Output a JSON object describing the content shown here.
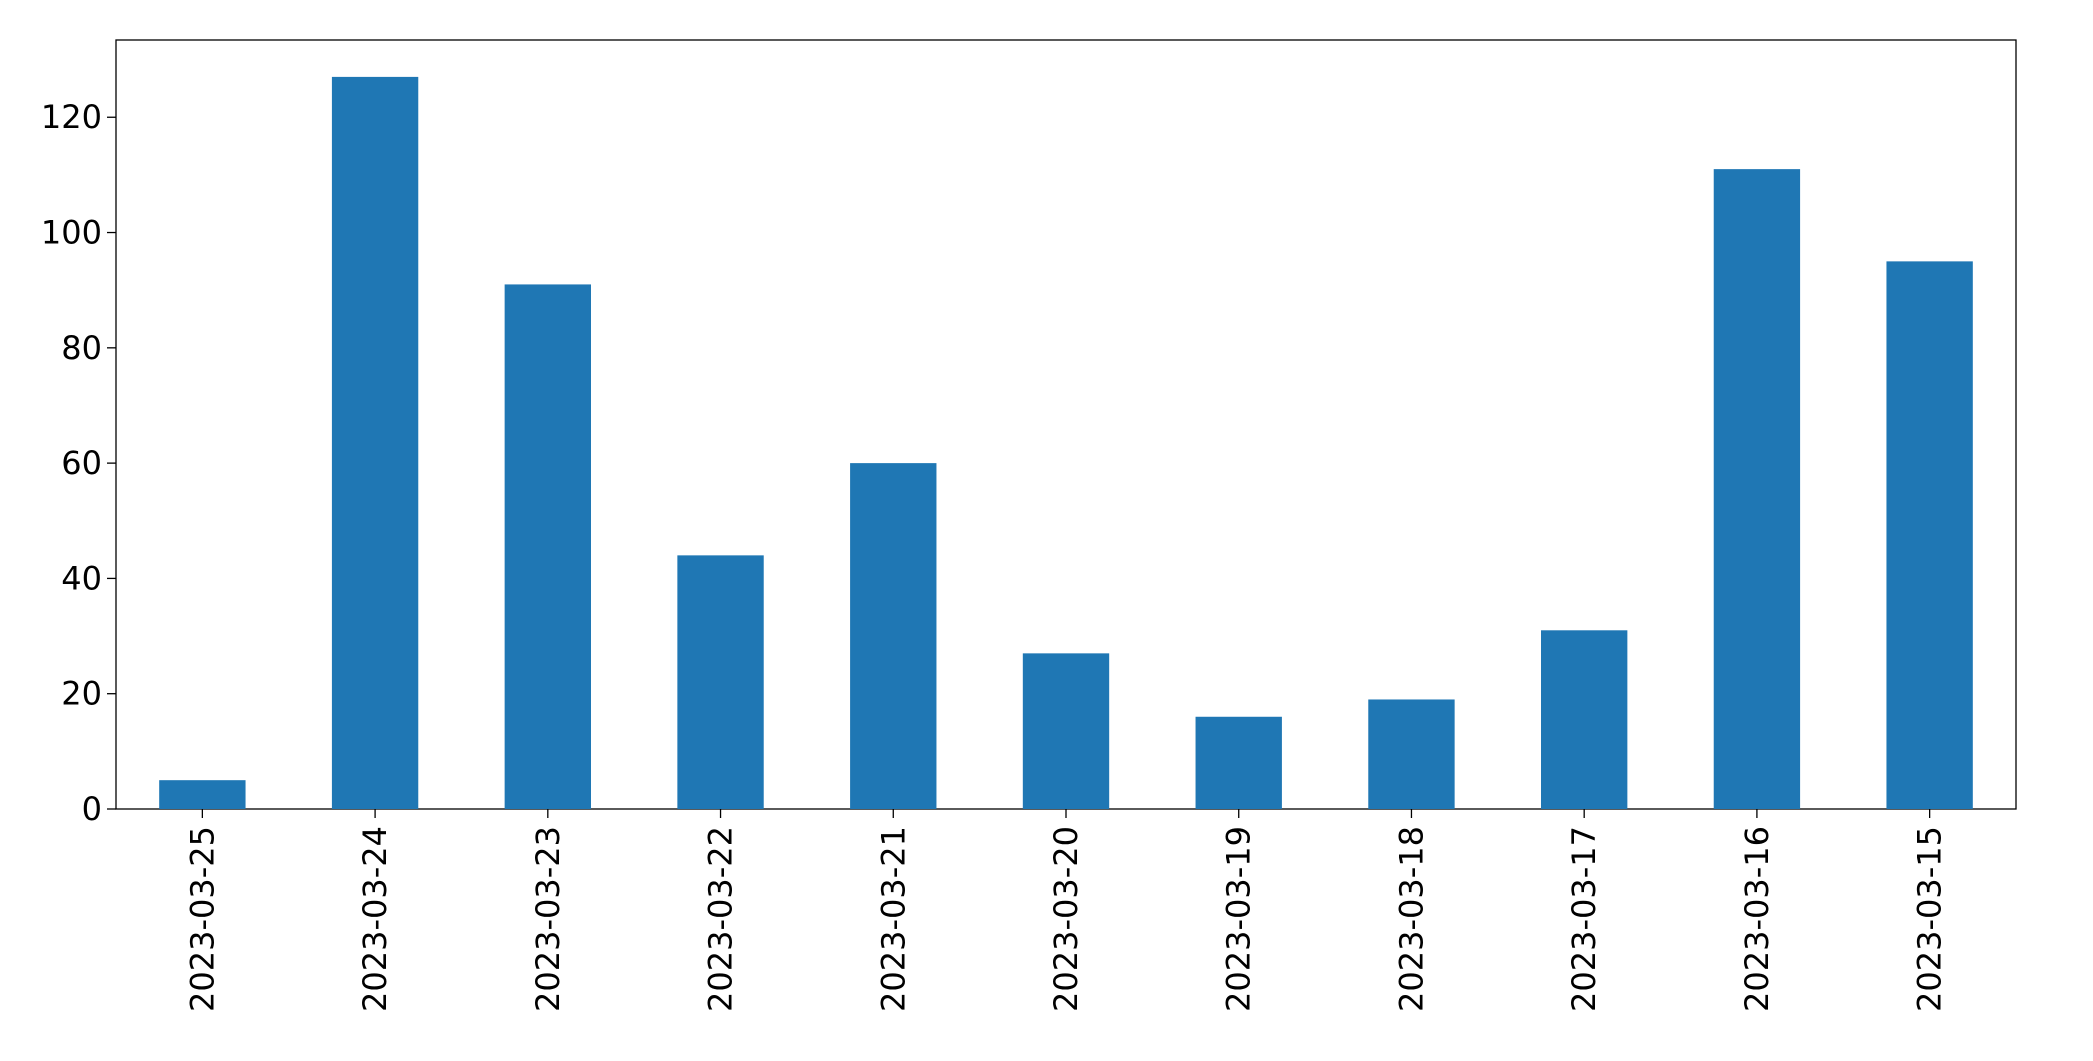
{
  "chart_data": {
    "type": "bar",
    "categories": [
      "2023-03-25",
      "2023-03-24",
      "2023-03-23",
      "2023-03-22",
      "2023-03-21",
      "2023-03-20",
      "2023-03-19",
      "2023-03-18",
      "2023-03-17",
      "2023-03-16",
      "2023-03-15"
    ],
    "values": [
      5,
      127,
      91,
      44,
      60,
      27,
      16,
      19,
      31,
      111,
      95
    ],
    "color": "#1f77b4",
    "ylim": [
      0,
      133.4
    ],
    "yticks": [
      0,
      20,
      40,
      60,
      80,
      100,
      120
    ],
    "grid": false
  }
}
